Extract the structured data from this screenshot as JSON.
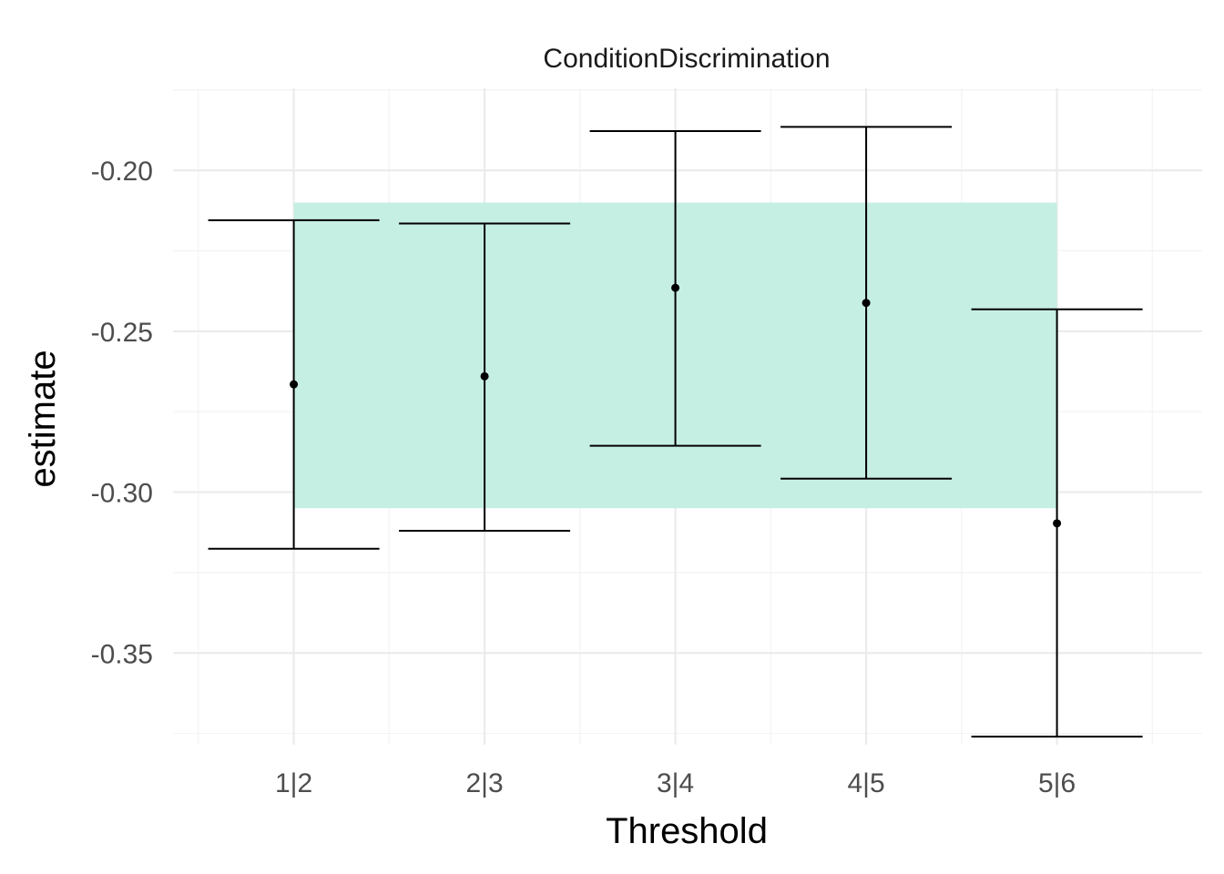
{
  "chart_data": {
    "type": "errorbar",
    "title": "ConditionDiscrimination",
    "xlabel": "Threshold",
    "ylabel": "estimate",
    "categories": [
      "1|2",
      "2|3",
      "3|4",
      "4|5",
      "5|6"
    ],
    "series": [
      {
        "values": [
          -0.2665,
          -0.264,
          -0.2365,
          -0.2412,
          -0.3097
        ],
        "lower": [
          -0.3176,
          -0.312,
          -0.2856,
          -0.2958,
          -0.376
        ],
        "upper": [
          -0.2155,
          -0.2165,
          -0.1878,
          -0.1865,
          -0.2432
        ]
      }
    ],
    "band": {
      "ymin": -0.305,
      "ymax": -0.21,
      "xmin_category": "1|2",
      "xmax_category": "5|6",
      "color": "#c6efe3"
    },
    "yticks": [
      -0.35,
      -0.3,
      -0.25,
      -0.2
    ],
    "ytick_labels": [
      "-0.35",
      "-0.30",
      "-0.25",
      "-0.20"
    ],
    "ylim": [
      -0.3785,
      -0.1745
    ],
    "grid": true,
    "colors": {
      "band": "#c6efe3",
      "errorbar": "#000000",
      "point": "#000000",
      "grid": "#ebebeb"
    }
  }
}
